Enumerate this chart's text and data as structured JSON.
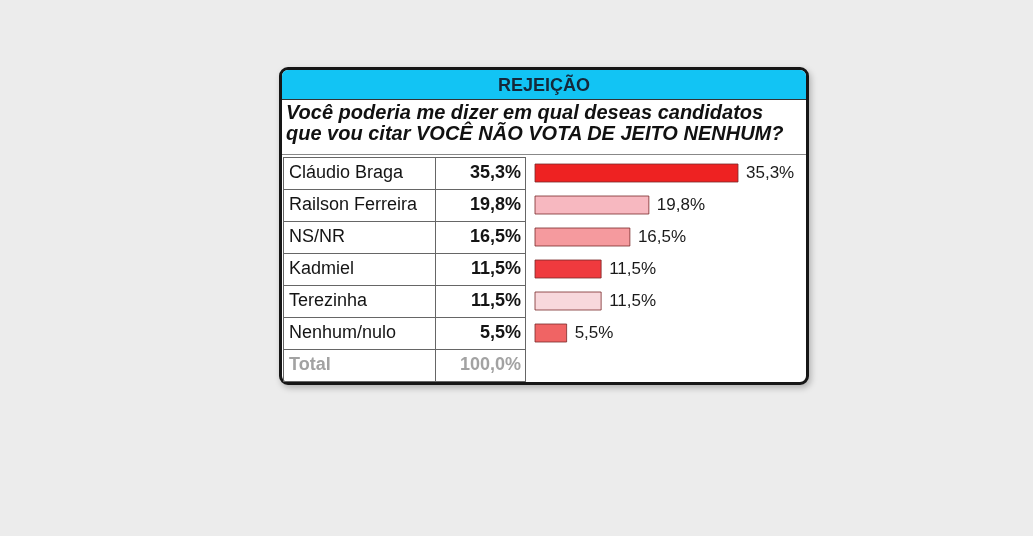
{
  "chart_data": {
    "type": "bar",
    "orientation": "horizontal",
    "title": "REJEIÇÃO",
    "subtitle": "Você poderia me dizer em qual deseas candidatos que vou citar VOCÊ NÃO VOTA DE JEITO NENHUM?",
    "categories": [
      "Cláudio Braga",
      "Railson Ferreira",
      "NS/NR",
      "Kadmiel",
      "Terezinha",
      "Nenhum/nulo",
      "Total"
    ],
    "values": [
      35.3,
      19.8,
      16.5,
      11.5,
      11.5,
      5.5,
      null
    ],
    "colors": [
      "#ee2222",
      "#f7b8c0",
      "#f59a9e",
      "#ef3a3e",
      "#f8d8dc",
      "#f06464",
      null
    ],
    "value_labels": [
      "35,3%",
      "19,8%",
      "16,5%",
      "11,5%",
      "11,5%",
      "5,5%",
      "100,0%"
    ]
  }
}
